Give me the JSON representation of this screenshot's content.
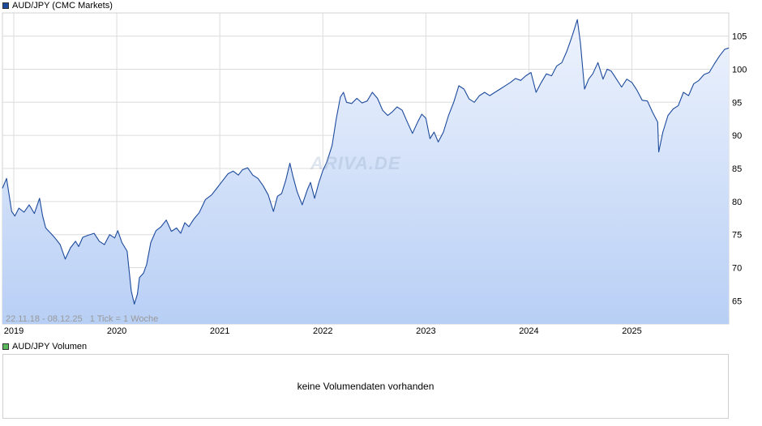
{
  "legend": {
    "price_label": "AUD/JPY (CMC Markets)",
    "price_color": "#1c4a9c",
    "volume_label": "AUD/JPY Volumen",
    "volume_color": "#5cb85c"
  },
  "range_note": "22.11.18 - 08.12.25   1 Tick = 1 Woche",
  "watermark": "ARIVA.DE",
  "volume_panel": {
    "message": "keine Volumendaten vorhanden"
  },
  "chart_data": {
    "type": "area",
    "title": "",
    "xlabel": "",
    "ylabel": "",
    "line_color": "#1c4a9c",
    "fill_top_color": "#eef3fd",
    "fill_bottom_color": "#b8cff5",
    "grid": true,
    "x_ticks": [
      "2019",
      "2020",
      "2021",
      "2022",
      "2023",
      "2024",
      "2025"
    ],
    "x_tick_positions": [
      2019.0,
      2020.0,
      2021.0,
      2022.0,
      2023.0,
      2024.0,
      2025.0
    ],
    "y_ticks": [
      65,
      70,
      75,
      80,
      85,
      90,
      95,
      100,
      105
    ],
    "xlim": [
      2018.89,
      2025.94
    ],
    "ylim": [
      61.5,
      108.5
    ],
    "x": [
      2018.89,
      2018.93,
      2018.98,
      2019.01,
      2019.05,
      2019.1,
      2019.15,
      2019.2,
      2019.25,
      2019.28,
      2019.31,
      2019.36,
      2019.4,
      2019.45,
      2019.5,
      2019.55,
      2019.6,
      2019.63,
      2019.67,
      2019.72,
      2019.78,
      2019.83,
      2019.88,
      2019.93,
      2019.98,
      2020.01,
      2020.05,
      2020.1,
      2020.14,
      2020.17,
      2020.2,
      2020.22,
      2020.26,
      2020.29,
      2020.33,
      2020.38,
      2020.43,
      2020.48,
      2020.53,
      2020.58,
      2020.62,
      2020.66,
      2020.7,
      2020.75,
      2020.8,
      2020.86,
      2020.92,
      2020.97,
      2021.02,
      2021.08,
      2021.13,
      2021.18,
      2021.22,
      2021.27,
      2021.32,
      2021.37,
      2021.42,
      2021.47,
      2021.52,
      2021.56,
      2021.6,
      2021.64,
      2021.68,
      2021.71,
      2021.75,
      2021.8,
      2021.85,
      2021.88,
      2021.92,
      2021.96,
      2022.0,
      2022.04,
      2022.09,
      2022.13,
      2022.17,
      2022.2,
      2022.23,
      2022.28,
      2022.33,
      2022.38,
      2022.43,
      2022.48,
      2022.53,
      2022.58,
      2022.63,
      2022.67,
      2022.72,
      2022.77,
      2022.82,
      2022.87,
      2022.92,
      2022.96,
      2023.0,
      2023.04,
      2023.08,
      2023.12,
      2023.17,
      2023.22,
      2023.27,
      2023.32,
      2023.37,
      2023.42,
      2023.47,
      2023.52,
      2023.57,
      2023.62,
      2023.67,
      2023.72,
      2023.77,
      2023.82,
      2023.87,
      2023.92,
      2023.97,
      2024.02,
      2024.07,
      2024.12,
      2024.17,
      2024.22,
      2024.27,
      2024.32,
      2024.37,
      2024.42,
      2024.47,
      2024.5,
      2024.54,
      2024.58,
      2024.62,
      2024.67,
      2024.72,
      2024.76,
      2024.8,
      2024.85,
      2024.9,
      2024.95,
      2025.0,
      2025.05,
      2025.1,
      2025.15,
      2025.2,
      2025.25,
      2025.26,
      2025.3,
      2025.35,
      2025.4,
      2025.45,
      2025.5,
      2025.55,
      2025.6,
      2025.65,
      2025.7,
      2025.75,
      2025.8,
      2025.85,
      2025.9,
      2025.94
    ],
    "y": [
      82.0,
      83.5,
      78.5,
      77.8,
      79.0,
      78.4,
      79.5,
      78.2,
      80.5,
      77.8,
      76.0,
      75.2,
      74.5,
      73.5,
      71.3,
      73.0,
      74.0,
      73.2,
      74.6,
      74.9,
      75.2,
      74.0,
      73.5,
      75.0,
      74.5,
      75.6,
      73.8,
      72.5,
      66.5,
      64.5,
      66.0,
      68.5,
      69.2,
      70.5,
      73.8,
      75.6,
      76.2,
      77.2,
      75.5,
      76.0,
      75.2,
      76.8,
      76.2,
      77.4,
      78.3,
      80.3,
      81.0,
      82.0,
      83.0,
      84.2,
      84.6,
      84.0,
      84.8,
      85.1,
      84.0,
      83.5,
      82.4,
      81.0,
      78.5,
      80.8,
      81.2,
      83.2,
      85.8,
      83.8,
      81.5,
      79.5,
      81.8,
      82.9,
      80.5,
      82.8,
      84.7,
      86.0,
      88.5,
      92.5,
      95.8,
      96.5,
      95.0,
      94.8,
      95.6,
      94.9,
      95.2,
      96.5,
      95.6,
      93.8,
      93.0,
      93.5,
      94.3,
      93.8,
      92.0,
      90.3,
      92.0,
      93.2,
      92.6,
      89.5,
      90.5,
      89.0,
      90.5,
      93.0,
      95.0,
      97.5,
      97.0,
      95.5,
      95.0,
      96.0,
      96.5,
      96.0,
      96.5,
      97.0,
      97.5,
      98.0,
      98.6,
      98.3,
      99.0,
      99.5,
      96.5,
      98.0,
      99.3,
      99.0,
      100.5,
      101.0,
      102.8,
      105.0,
      107.5,
      104.0,
      97.0,
      98.5,
      99.3,
      101.0,
      98.5,
      100.0,
      99.7,
      98.5,
      97.3,
      98.5,
      98.0,
      96.8,
      95.3,
      95.2,
      93.5,
      92.0,
      87.5,
      90.5,
      93.0,
      94.0,
      94.5,
      96.5,
      96.0,
      97.8,
      98.3,
      99.2,
      99.5,
      100.8,
      102.0,
      103.0,
      103.2
    ]
  }
}
